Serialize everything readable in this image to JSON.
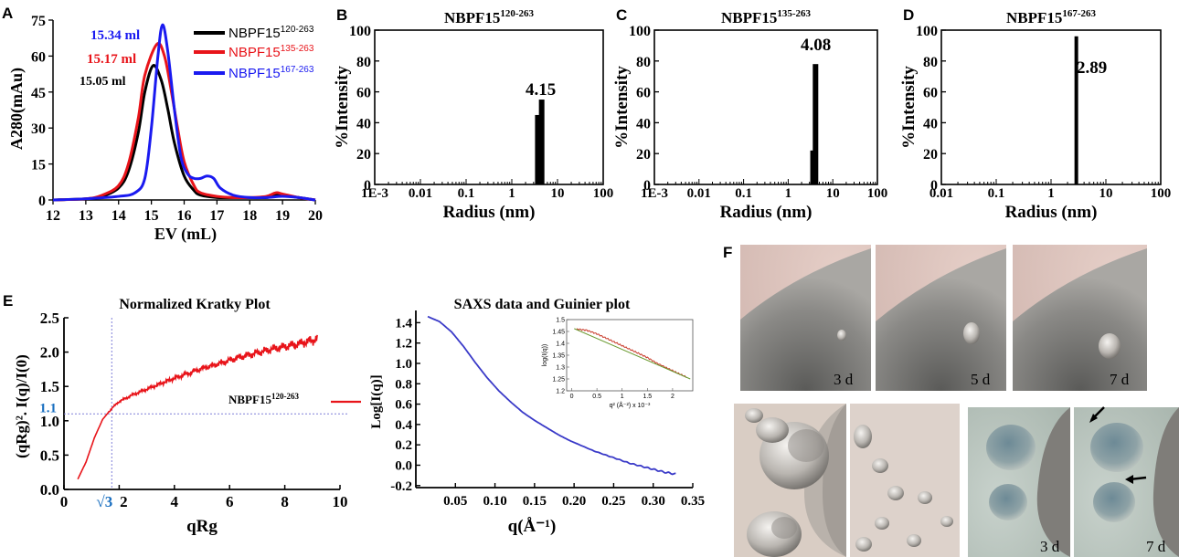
{
  "panel_letters": {
    "A": "A",
    "B": "B",
    "C": "C",
    "D": "D",
    "E": "E",
    "F": "F"
  },
  "colors": {
    "black": "#000000",
    "red": "#e8141a",
    "blue": "#1a1af0",
    "sec_blue": "#1a3fe0",
    "dotted": "#7f7fd8",
    "sqrt3": "#1a6fc0",
    "axis": "#000000"
  },
  "chart_data": [
    {
      "id": "A",
      "type": "line",
      "title": "",
      "xlabel": "EV (mL)",
      "ylabel": "A280(mAu)",
      "xlim": [
        12,
        20
      ],
      "ylim": [
        0,
        75
      ],
      "xticks": [
        "12",
        "13",
        "14",
        "15",
        "16",
        "17",
        "18",
        "19",
        "20"
      ],
      "yticks": [
        "0",
        "15",
        "30",
        "45",
        "60",
        "75"
      ],
      "series": [
        {
          "name": "NBPF15",
          "sup": "120-263",
          "color": "#000000",
          "peak_label": "15.05 ml",
          "x": [
            12,
            13,
            13.5,
            14,
            14.3,
            14.6,
            14.8,
            15.05,
            15.3,
            15.5,
            15.7,
            16,
            16.3,
            16.5,
            17,
            17.5,
            18,
            18.5,
            18.8,
            19,
            19.5,
            20
          ],
          "y": [
            0,
            0.5,
            1.5,
            5,
            12,
            28,
            45,
            56,
            50,
            38,
            24,
            10,
            4,
            2,
            1,
            1,
            1,
            1,
            2,
            2,
            1,
            0
          ]
        },
        {
          "name": "NBPF15",
          "sup": "135-263",
          "color": "#e8141a",
          "peak_label": "15.17 ml",
          "x": [
            12,
            13,
            13.5,
            14,
            14.3,
            14.6,
            14.8,
            15.17,
            15.4,
            15.6,
            15.8,
            16,
            16.3,
            16.5,
            17,
            17.5,
            18,
            18.5,
            18.8,
            19,
            19.5,
            20
          ],
          "y": [
            0,
            0.5,
            2,
            6,
            15,
            34,
            52,
            65,
            60,
            46,
            30,
            16,
            6,
            3,
            1.5,
            1,
            1,
            1.5,
            3,
            2.5,
            1,
            0
          ]
        },
        {
          "name": "NBPF15",
          "sup": "167-263",
          "color": "#1a1af0",
          "peak_label": "15.34 ml",
          "x": [
            12,
            13,
            14,
            14.5,
            14.8,
            15,
            15.2,
            15.34,
            15.5,
            15.7,
            15.9,
            16.1,
            16.3,
            16.5,
            16.7,
            16.9,
            17.1,
            17.5,
            18,
            18.5,
            19,
            19.5,
            20
          ],
          "y": [
            0,
            0.5,
            1.5,
            3,
            9,
            30,
            60,
            73,
            62,
            38,
            18,
            11,
            9,
            9,
            10,
            9,
            5,
            2,
            1,
            1,
            1.5,
            1,
            0
          ]
        }
      ]
    },
    {
      "id": "B",
      "type": "bar",
      "title": "NBPF15",
      "title_sup": "120-263",
      "xlabel": "Radius (nm)",
      "ylabel": "%Intensity",
      "xscale": "log",
      "xlim": [
        0.001,
        100
      ],
      "ylim": [
        0,
        100
      ],
      "xticks": [
        "1E-3",
        "0.01",
        "0.1",
        "1",
        "10",
        "100"
      ],
      "yticks": [
        "0",
        "20",
        "40",
        "60",
        "80",
        "100"
      ],
      "annotation": "4.15",
      "bars": [
        {
          "x": 3.7,
          "value": 45
        },
        {
          "x": 4.5,
          "value": 55
        }
      ]
    },
    {
      "id": "C",
      "type": "bar",
      "title": "NBPF15",
      "title_sup": "135-263",
      "xlabel": "Radius (nm)",
      "ylabel": "%Intensity",
      "xscale": "log",
      "xlim": [
        0.001,
        100
      ],
      "ylim": [
        0,
        100
      ],
      "xticks": [
        "1E-3",
        "0.01",
        "0.1",
        "1",
        "10",
        "100"
      ],
      "yticks": [
        "0",
        "20",
        "40",
        "60",
        "80",
        "100"
      ],
      "annotation": "4.08",
      "bars": [
        {
          "x": 3.6,
          "value": 22
        },
        {
          "x": 4.1,
          "value": 78
        }
      ]
    },
    {
      "id": "D",
      "type": "bar",
      "title": "NBPF15",
      "title_sup": "167-263",
      "xlabel": "Radius (nm)",
      "ylabel": "%Intensity",
      "xscale": "log",
      "xlim": [
        0.01,
        100
      ],
      "ylim": [
        0,
        100
      ],
      "xticks": [
        "0.01",
        "0.1",
        "1",
        "10",
        "100"
      ],
      "yticks": [
        "0",
        "20",
        "40",
        "60",
        "80",
        "100"
      ],
      "annotation": "2.89",
      "bars": [
        {
          "x": 2.89,
          "value": 96
        }
      ]
    },
    {
      "id": "E1",
      "type": "line",
      "title": "Normalized Kratky Plot",
      "xlabel": "qRg",
      "ylabel": "(qRg)². I(q)/I(0)",
      "xlim": [
        0,
        10
      ],
      "ylim": [
        0,
        2.5
      ],
      "xticks": [
        "0",
        "2",
        "4",
        "6",
        "8",
        "10"
      ],
      "yticks": [
        "0.0",
        "0.5",
        "1.0",
        "1.5",
        "2.0",
        "2.5"
      ],
      "ref_y": "1.1",
      "ref_x": "√3",
      "legend": "NBPF15",
      "legend_sup": "120-263",
      "series": [
        {
          "name": "NBPF15",
          "color": "#e8141a",
          "x": [
            0.5,
            0.8,
            1.1,
            1.4,
            1.73,
            2.0,
            2.5,
            3.0,
            3.5,
            4.0,
            4.5,
            5,
            5.5,
            6,
            6.5,
            7,
            7.5,
            8,
            8.5,
            9,
            9.2
          ],
          "y": [
            0.15,
            0.4,
            0.75,
            1.02,
            1.18,
            1.28,
            1.38,
            1.46,
            1.54,
            1.62,
            1.69,
            1.76,
            1.82,
            1.88,
            1.94,
            1.99,
            2.04,
            2.08,
            2.12,
            2.17,
            2.2
          ]
        }
      ]
    },
    {
      "id": "E2",
      "type": "scatter",
      "title": "SAXS data and Guinier plot",
      "xlabel": "q(Å⁻¹)",
      "ylabel": "Log[I(q)]",
      "xlim": [
        0,
        0.35
      ],
      "ylim": [
        -0.2,
        1.5
      ],
      "xticks": [
        "0.05",
        "0.10",
        "0.15",
        "0.20",
        "0.25",
        "0.30",
        "0.35"
      ],
      "yticks": [
        "-0.2",
        "0.0",
        "0.2",
        "0.4",
        "0.6",
        "0.8",
        "1.0",
        "1.2",
        "1.4"
      ],
      "series": [
        {
          "color": "#3a3ac8",
          "x": [
            0.015,
            0.03,
            0.045,
            0.06,
            0.075,
            0.09,
            0.105,
            0.12,
            0.135,
            0.15,
            0.165,
            0.18,
            0.195,
            0.21,
            0.225,
            0.24,
            0.255,
            0.27,
            0.285,
            0.3,
            0.315,
            0.33
          ],
          "y": [
            1.46,
            1.41,
            1.31,
            1.17,
            1.01,
            0.86,
            0.73,
            0.62,
            0.52,
            0.44,
            0.37,
            0.3,
            0.24,
            0.19,
            0.14,
            0.1,
            0.06,
            0.02,
            -0.01,
            -0.04,
            -0.07,
            -0.09
          ]
        }
      ],
      "inset": {
        "xlabel": "q² (Å⁻²) x 10⁻³",
        "ylabel": "log(I(q))",
        "xticks": [
          "0",
          "0.5",
          "1",
          "1.5",
          "2"
        ],
        "yticks": [
          "1.2",
          "1.25",
          "1.3",
          "1.35",
          "1.4",
          "1.45",
          "1.5"
        ],
        "x": [
          0.1,
          0.3,
          0.5,
          0.7,
          0.9,
          1.1,
          1.3,
          1.5,
          1.7,
          1.9,
          2.1,
          2.3
        ],
        "y": [
          1.46,
          1.455,
          1.44,
          1.42,
          1.4,
          1.38,
          1.36,
          1.34,
          1.315,
          1.295,
          1.275,
          1.255
        ]
      }
    }
  ],
  "micrographs": {
    "top": [
      {
        "label": "3 d"
      },
      {
        "label": "5 d"
      },
      {
        "label": "7 d"
      }
    ],
    "bottom_right": [
      {
        "label": "3 d"
      },
      {
        "label": "7 d"
      }
    ]
  }
}
